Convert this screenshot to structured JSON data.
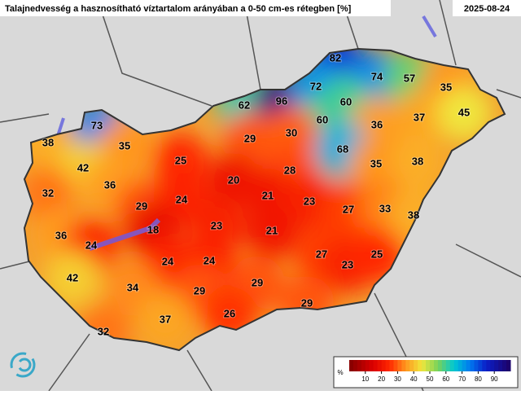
{
  "header": {
    "title": "Talajnedvesség a hasznosítható víztartalom arányában a 0-50 cm-es rétegben [%]",
    "date": "2025-08-24"
  },
  "stations": [
    82,
    74,
    57,
    35,
    62,
    96,
    72,
    60,
    37,
    45,
    73,
    60,
    36,
    38,
    35,
    29,
    30,
    68,
    42,
    25,
    28,
    35,
    38,
    20,
    32,
    36,
    21,
    23,
    29,
    24,
    27,
    33,
    38,
    18,
    23,
    21,
    36,
    24,
    27,
    23,
    25,
    24,
    24,
    42,
    34,
    29,
    29,
    29,
    26,
    37,
    32
  ],
  "legend": {
    "unit": "%",
    "range": [
      0,
      100
    ],
    "ticks": [
      10,
      20,
      30,
      40,
      50,
      60,
      70,
      80,
      90
    ]
  }
}
